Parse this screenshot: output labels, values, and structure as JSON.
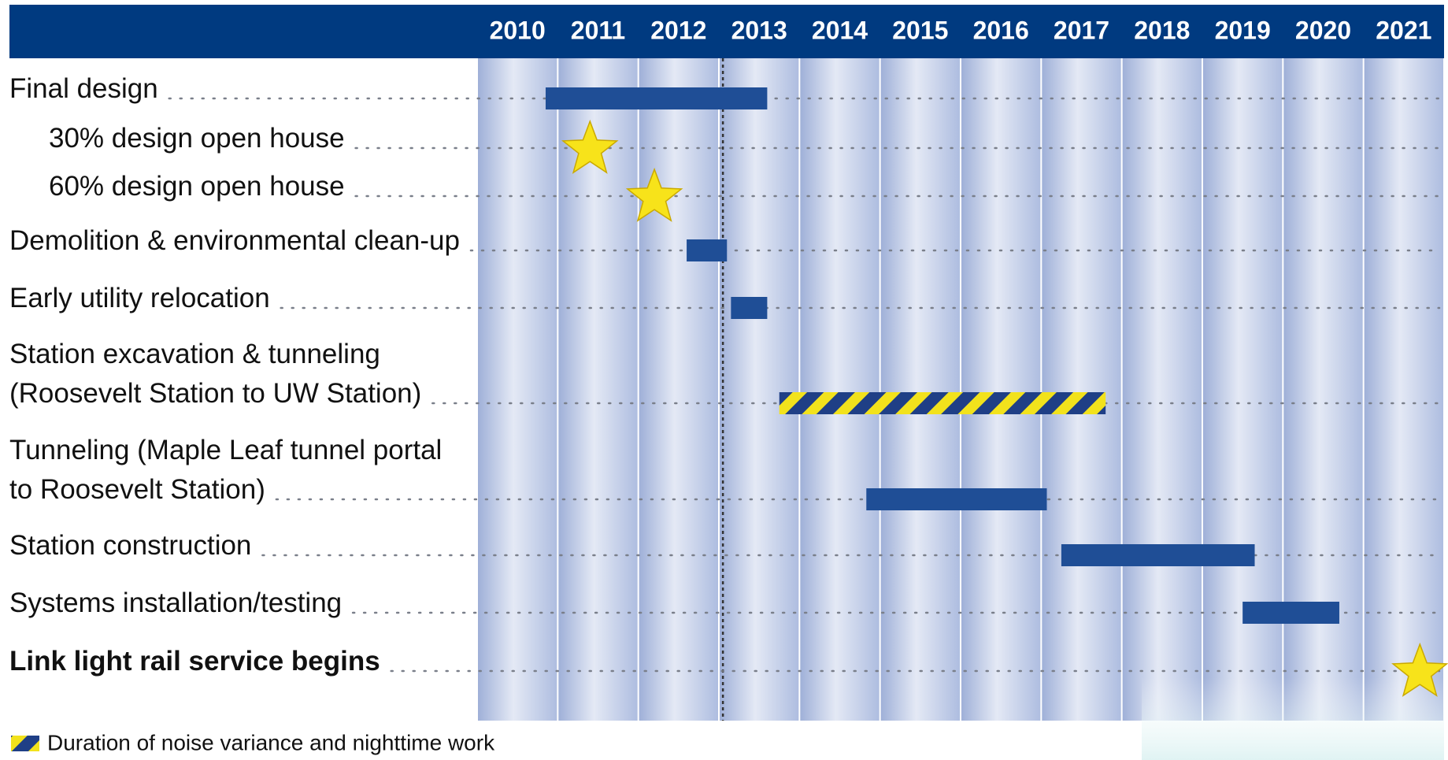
{
  "chart_data": {
    "type": "gantt",
    "categories": [
      "Final design",
      "30% design open house",
      "60% design open house",
      "Demolition & environmental clean-up",
      "Early utility relocation",
      "Station excavation & tunneling\n(Roosevelt Station to UW Station)",
      "Tunneling (Maple Leaf tunnel portal\nto Roosevelt Station)",
      "Station construction",
      "Systems installation/testing",
      "Link light rail service begins"
    ],
    "start": [
      2010.85,
      null,
      null,
      2012.6,
      2013.15,
      2013.75,
      2014.83,
      2017.25,
      2019.5,
      null
    ],
    "end": [
      2013.6,
      null,
      null,
      2013.1,
      2013.6,
      2017.8,
      2017.07,
      2019.65,
      2020.7,
      null
    ],
    "milestones": [
      null,
      2011.4,
      2012.2,
      null,
      null,
      null,
      null,
      null,
      null,
      2021.7
    ],
    "hatched": [
      false,
      false,
      false,
      false,
      false,
      true,
      false,
      false,
      false,
      false
    ],
    "indent": [
      0,
      1,
      1,
      0,
      0,
      0,
      0,
      0,
      0,
      0
    ],
    "bold": [
      false,
      false,
      false,
      false,
      false,
      false,
      false,
      false,
      false,
      true
    ],
    "xlim": [
      2010,
      2022
    ],
    "xticks": [
      2010,
      2011,
      2012,
      2013,
      2014,
      2015,
      2016,
      2017,
      2018,
      2019,
      2020,
      2021
    ],
    "today": 2013.05,
    "bar_color": "#1f4e96",
    "star_color": "#f7e31a",
    "legend_label": "Duration of noise variance and nighttime work"
  }
}
